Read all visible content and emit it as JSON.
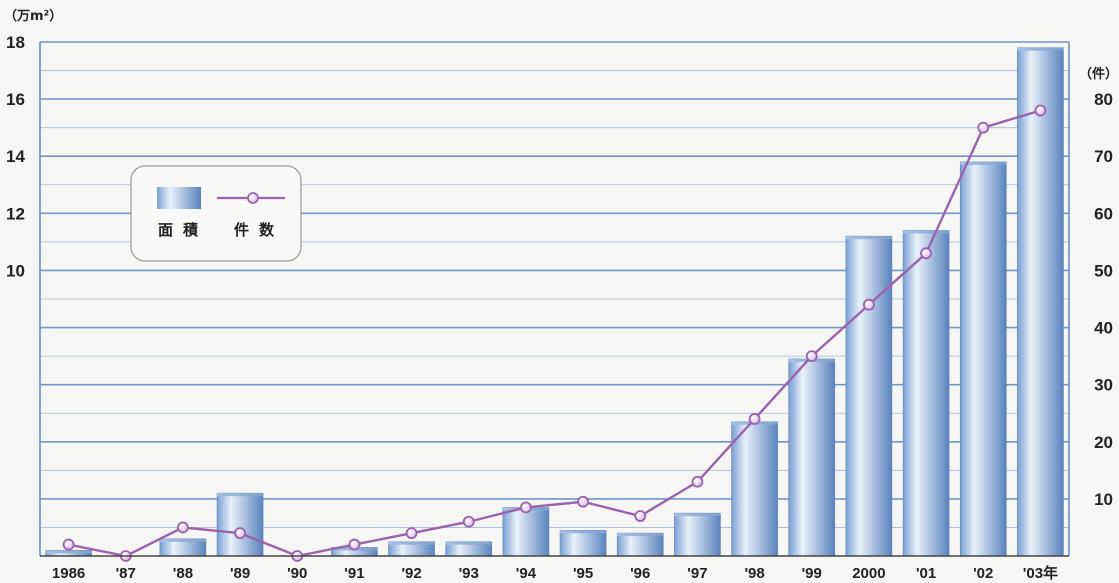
{
  "chart_data": {
    "type": "bar",
    "categories": [
      "1986",
      "'87",
      "'88",
      "'89",
      "'90",
      "'91",
      "'92",
      "'93",
      "'94",
      "'95",
      "'96",
      "'97",
      "'98",
      "'99",
      "2000",
      "'01",
      "'02",
      "'03年"
    ],
    "series": [
      {
        "name": "面積",
        "type": "bar",
        "axis": "left",
        "values": [
          0.2,
          0,
          0.6,
          2.2,
          0,
          0.3,
          0.5,
          0.5,
          1.7,
          0.9,
          0.8,
          1.5,
          4.7,
          6.9,
          11.2,
          11.4,
          13.8,
          17.8
        ]
      },
      {
        "name": "件数",
        "type": "line",
        "axis": "right",
        "values": [
          2,
          0,
          5,
          4,
          0,
          2,
          4,
          6,
          8.5,
          9.5,
          7,
          13,
          24,
          35,
          44,
          53,
          75,
          78
        ]
      }
    ],
    "y_left": {
      "unit": "（万m²）",
      "ylim": [
        0,
        18
      ],
      "ticks": [
        "10",
        "12",
        "14",
        "16",
        "18"
      ],
      "tick_values": [
        10,
        12,
        14,
        16,
        18
      ]
    },
    "y_right": {
      "unit": "（件）",
      "ylim": [
        0,
        90
      ],
      "ticks": [
        "10",
        "20",
        "30",
        "40",
        "50",
        "60",
        "70",
        "80"
      ],
      "tick_values": [
        10,
        20,
        30,
        40,
        50,
        60,
        70,
        80
      ]
    },
    "legend": {
      "position": "top-left"
    },
    "grid": true
  },
  "colors": {
    "bar_light": "#e8f0fa",
    "bar_dark": "#5f86c0",
    "line": "#9b62b0",
    "grid": "#6c8fc8",
    "marker_fill": "#ecd9f2"
  }
}
